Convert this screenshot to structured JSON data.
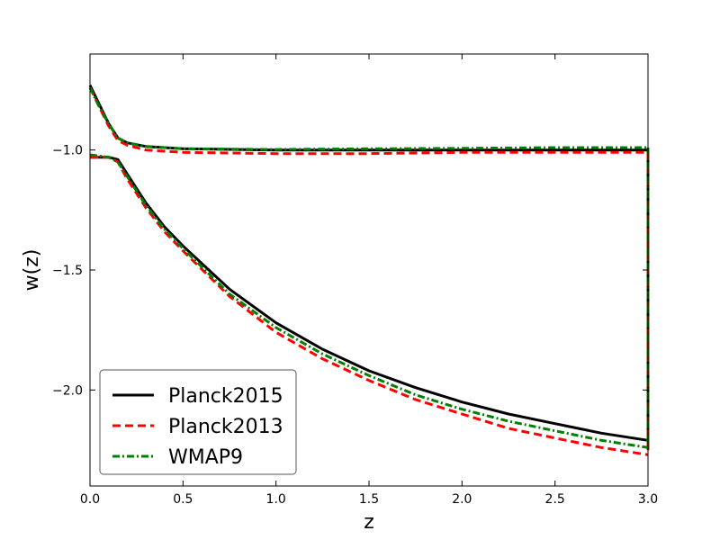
{
  "chart_data": {
    "type": "line",
    "title": "",
    "xlabel": "z",
    "ylabel": "w(z)",
    "xlim": [
      0.0,
      3.0
    ],
    "ylim": [
      -2.4,
      -0.6
    ],
    "xticks": [
      0.0,
      0.5,
      1.0,
      1.5,
      2.0,
      2.5,
      3.0
    ],
    "xtick_labels": [
      "0.0",
      "0.5",
      "1.0",
      "1.5",
      "2.0",
      "2.5",
      "3.0"
    ],
    "yticks": [
      -1.0,
      -1.5,
      -2.0
    ],
    "ytick_labels": [
      "−1.0",
      "−1.5",
      "−2.0"
    ],
    "grid": false,
    "legend_position": "lower-left",
    "series": [
      {
        "name": "Planck2015",
        "color": "#000000",
        "style": "solid",
        "upper": {
          "x": [
            0.0,
            0.05,
            0.1,
            0.15,
            0.2,
            0.3,
            0.5,
            1.0,
            1.5,
            2.0,
            2.5,
            3.0
          ],
          "y": [
            -0.73,
            -0.81,
            -0.89,
            -0.95,
            -0.97,
            -0.985,
            -0.995,
            -1.0,
            -1.0,
            -1.0,
            -1.0,
            -1.0
          ]
        },
        "lower": {
          "x": [
            0.0,
            0.1,
            0.15,
            0.2,
            0.3,
            0.4,
            0.5,
            0.75,
            1.0,
            1.25,
            1.5,
            1.75,
            2.0,
            2.25,
            2.5,
            2.75,
            3.0
          ],
          "y": [
            -1.03,
            -1.03,
            -1.04,
            -1.1,
            -1.22,
            -1.32,
            -1.4,
            -1.58,
            -1.72,
            -1.83,
            -1.92,
            -1.99,
            -2.05,
            -2.1,
            -2.14,
            -2.18,
            -2.21
          ]
        },
        "right_edge": [
          -1.0,
          -2.21
        ]
      },
      {
        "name": "Planck2013",
        "color": "#ff0000",
        "style": "dashed",
        "upper": {
          "x": [
            0.0,
            0.05,
            0.1,
            0.15,
            0.2,
            0.3,
            0.5,
            1.0,
            1.5,
            2.0,
            2.5,
            3.0
          ],
          "y": [
            -0.74,
            -0.82,
            -0.9,
            -0.96,
            -0.98,
            -1.0,
            -1.01,
            -1.015,
            -1.015,
            -1.01,
            -1.01,
            -1.01
          ]
        },
        "lower": {
          "x": [
            0.0,
            0.1,
            0.15,
            0.2,
            0.3,
            0.4,
            0.5,
            0.75,
            1.0,
            1.25,
            1.5,
            1.75,
            2.0,
            2.25,
            2.5,
            2.75,
            3.0
          ],
          "y": [
            -1.03,
            -1.03,
            -1.05,
            -1.12,
            -1.24,
            -1.34,
            -1.42,
            -1.61,
            -1.76,
            -1.87,
            -1.96,
            -2.04,
            -2.1,
            -2.16,
            -2.2,
            -2.24,
            -2.27
          ]
        },
        "right_edge": [
          -1.01,
          -2.27
        ]
      },
      {
        "name": "WMAP9",
        "color": "#008000",
        "style": "dashdot",
        "upper": {
          "x": [
            0.0,
            0.05,
            0.1,
            0.15,
            0.2,
            0.3,
            0.5,
            1.0,
            1.5,
            2.0,
            2.5,
            3.0
          ],
          "y": [
            -0.74,
            -0.82,
            -0.89,
            -0.95,
            -0.97,
            -0.985,
            -0.995,
            -0.998,
            -0.995,
            -0.993,
            -0.99,
            -0.99
          ]
        },
        "lower": {
          "x": [
            0.0,
            0.1,
            0.15,
            0.2,
            0.3,
            0.4,
            0.5,
            0.75,
            1.0,
            1.25,
            1.5,
            1.75,
            2.0,
            2.25,
            2.5,
            2.75,
            3.0
          ],
          "y": [
            -1.02,
            -1.03,
            -1.05,
            -1.11,
            -1.23,
            -1.33,
            -1.41,
            -1.6,
            -1.74,
            -1.85,
            -1.94,
            -2.02,
            -2.08,
            -2.13,
            -2.17,
            -2.21,
            -2.24
          ]
        },
        "right_edge": [
          -0.99,
          -2.24
        ]
      }
    ]
  }
}
